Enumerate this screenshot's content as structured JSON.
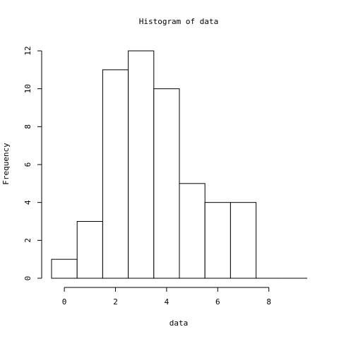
{
  "chart_data": {
    "type": "bar",
    "title": "Histogram of data",
    "xlabel": "data",
    "ylabel": "Frequency",
    "bins": [
      {
        "start": -0.5,
        "end": 0.5,
        "count": 1
      },
      {
        "start": 0.5,
        "end": 1.5,
        "count": 3
      },
      {
        "start": 1.5,
        "end": 2.5,
        "count": 11
      },
      {
        "start": 2.5,
        "end": 3.5,
        "count": 12
      },
      {
        "start": 3.5,
        "end": 4.5,
        "count": 10
      },
      {
        "start": 4.5,
        "end": 5.5,
        "count": 5
      },
      {
        "start": 5.5,
        "end": 6.5,
        "count": 4
      },
      {
        "start": 6.5,
        "end": 7.5,
        "count": 4
      },
      {
        "start": 7.5,
        "end": 8.5,
        "count": 0
      },
      {
        "start": 8.5,
        "end": 9.5,
        "count": 0
      }
    ],
    "xlim": [
      -0.5,
      9.5
    ],
    "ylim": [
      0,
      12
    ],
    "x_ticks": [
      0,
      2,
      4,
      6,
      8
    ],
    "y_ticks": [
      0,
      2,
      4,
      6,
      8,
      10,
      12
    ],
    "grid": false
  }
}
